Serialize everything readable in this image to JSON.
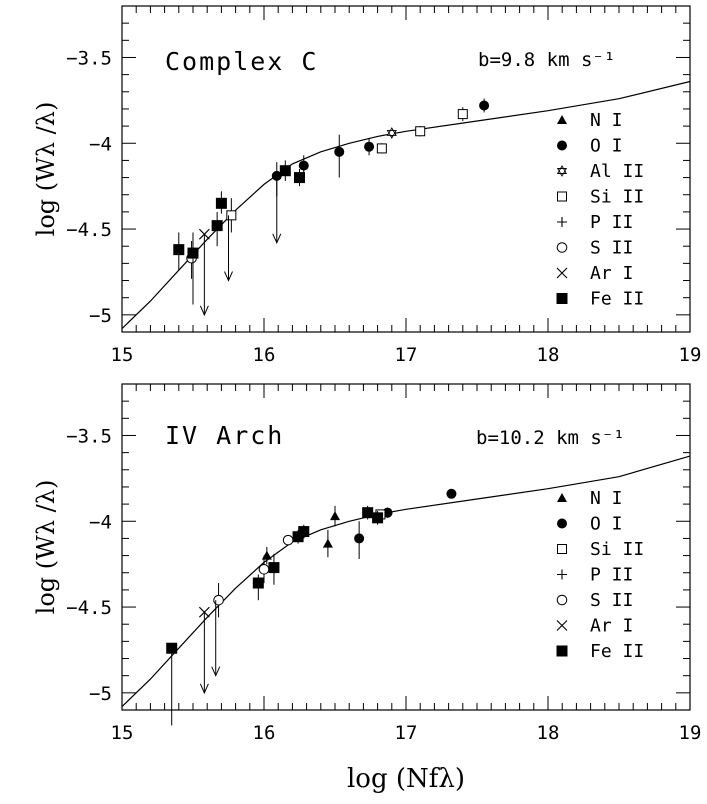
{
  "figure": {
    "xlabel": "log (Nfλ)",
    "ylabel": "log (Wλ /λ)"
  },
  "legend_items": {
    "N_I": "N I",
    "O_I": "O I",
    "Al_II": "Al II",
    "Si_II": "Si II",
    "P_II": "P II",
    "S_II": "S II",
    "Ar_I": "Ar I",
    "Fe_II": "Fe II"
  },
  "chart_data": [
    {
      "type": "scatter",
      "title": "Complex C",
      "annotation": "b=9.8 km s⁻¹",
      "xlim": [
        15,
        19
      ],
      "ylim": [
        -5.1,
        -3.2
      ],
      "xticks": [
        "15",
        "16",
        "17",
        "18",
        "19"
      ],
      "yticks": [
        "-3.5",
        "-4",
        "-4.5",
        "-5"
      ],
      "legend": [
        "N I",
        "O I",
        "Al II",
        "Si II",
        "P II",
        "S II",
        "Ar I",
        "Fe II"
      ],
      "legend_position": "right",
      "curve": [
        [
          15.0,
          -5.08
        ],
        [
          15.2,
          -4.92
        ],
        [
          15.4,
          -4.74
        ],
        [
          15.6,
          -4.56
        ],
        [
          15.8,
          -4.39
        ],
        [
          16.0,
          -4.24
        ],
        [
          16.2,
          -4.12
        ],
        [
          16.4,
          -4.05
        ],
        [
          16.6,
          -4.0
        ],
        [
          16.8,
          -3.96
        ],
        [
          17.0,
          -3.93
        ],
        [
          17.5,
          -3.87
        ],
        [
          18.0,
          -3.81
        ],
        [
          18.5,
          -3.74
        ],
        [
          19.0,
          -3.64
        ]
      ],
      "series": [
        {
          "name": "O I",
          "marker": "filled-circle",
          "points": [
            {
              "x": 16.09,
              "y": -4.19,
              "err": [
                0.12,
                0.08
              ]
            },
            {
              "x": 16.28,
              "y": -4.13,
              "err": [
                0.06,
                0.06
              ]
            },
            {
              "x": 16.53,
              "y": -4.05,
              "err": [
                0.15,
                0.1
              ]
            },
            {
              "x": 16.74,
              "y": -4.02,
              "err": [
                0.05,
                0.05
              ]
            },
            {
              "x": 17.55,
              "y": -3.78,
              "err": [
                0.04,
                0.04
              ]
            }
          ]
        },
        {
          "name": "O I upper limit",
          "marker": "none",
          "points": [
            {
              "x": 16.09,
              "y": -4.19,
              "upper": -4.58
            }
          ]
        },
        {
          "name": "Al II",
          "marker": "star",
          "points": [
            {
              "x": 16.9,
              "y": -3.94,
              "err": [
                0.02,
                0.02
              ]
            }
          ]
        },
        {
          "name": "Si II",
          "marker": "open-square",
          "points": [
            {
              "x": 15.77,
              "y": -4.42,
              "err": [
                0.1,
                0.1
              ]
            },
            {
              "x": 16.83,
              "y": -4.03,
              "err": [
                0.03,
                0.03
              ]
            },
            {
              "x": 17.1,
              "y": -3.93,
              "err": [
                0.03,
                0.03
              ]
            },
            {
              "x": 17.4,
              "y": -3.83,
              "err": [
                0.04,
                0.04
              ]
            }
          ]
        },
        {
          "name": "Si II upper limit",
          "marker": "none",
          "points": [
            {
              "x": 15.75,
              "y": -4.42,
              "upper": -4.8
            }
          ]
        },
        {
          "name": "S II",
          "marker": "open-circle",
          "points": [
            {
              "x": 15.49,
              "y": -4.67,
              "err": [
                0.12,
                0.1
              ]
            }
          ]
        },
        {
          "name": "Ar I",
          "marker": "cross",
          "points": [
            {
              "x": 15.58,
              "y": -4.53,
              "upper": -5.0
            }
          ]
        },
        {
          "name": "Fe II",
          "marker": "filled-square",
          "points": [
            {
              "x": 15.4,
              "y": -4.62,
              "err": [
                0.12,
                0.1
              ]
            },
            {
              "x": 15.5,
              "y": -4.64,
              "err": [
                0.3,
                0.12
              ]
            },
            {
              "x": 15.67,
              "y": -4.48,
              "err": [
                0.12,
                0.08
              ]
            },
            {
              "x": 15.7,
              "y": -4.35,
              "err": [
                0.06,
                0.07
              ]
            },
            {
              "x": 16.15,
              "y": -4.16,
              "err": [
                0.06,
                0.06
              ]
            },
            {
              "x": 16.25,
              "y": -4.2,
              "err": [
                0.05,
                0.05
              ]
            }
          ]
        }
      ]
    },
    {
      "type": "scatter",
      "title": "IV Arch",
      "annotation": "b=10.2 km s⁻¹",
      "xlim": [
        15,
        19
      ],
      "ylim": [
        -5.1,
        -3.2
      ],
      "xticks": [
        "15",
        "16",
        "17",
        "18",
        "19"
      ],
      "yticks": [
        "-3.5",
        "-4",
        "-4.5",
        "-5"
      ],
      "legend": [
        "N I",
        "O I",
        "Si II",
        "P II",
        "S II",
        "Ar I",
        "Fe II"
      ],
      "legend_position": "right",
      "curve": [
        [
          15.0,
          -5.08
        ],
        [
          15.2,
          -4.92
        ],
        [
          15.4,
          -4.74
        ],
        [
          15.6,
          -4.56
        ],
        [
          15.8,
          -4.39
        ],
        [
          16.0,
          -4.24
        ],
        [
          16.2,
          -4.12
        ],
        [
          16.4,
          -4.05
        ],
        [
          16.6,
          -4.0
        ],
        [
          16.8,
          -3.96
        ],
        [
          17.0,
          -3.93
        ],
        [
          17.5,
          -3.87
        ],
        [
          18.0,
          -3.81
        ],
        [
          18.5,
          -3.74
        ],
        [
          19.0,
          -3.62
        ]
      ],
      "series": [
        {
          "name": "N I",
          "marker": "filled-triangle",
          "points": [
            {
              "x": 16.02,
              "y": -4.2,
              "err": [
                0.05,
                0.05
              ]
            },
            {
              "x": 16.45,
              "y": -4.13,
              "err": [
                0.08,
                0.08
              ]
            },
            {
              "x": 16.5,
              "y": -3.97,
              "err": [
                0.06,
                0.06
              ]
            }
          ]
        },
        {
          "name": "O I",
          "marker": "filled-circle",
          "points": [
            {
              "x": 16.67,
              "y": -4.1,
              "err": [
                0.12,
                0.1
              ]
            },
            {
              "x": 16.87,
              "y": -3.95,
              "err": [
                0.03,
                0.03
              ]
            },
            {
              "x": 17.32,
              "y": -3.84,
              "err": [
                0.02,
                0.02
              ]
            }
          ]
        },
        {
          "name": "Si II",
          "marker": "open-square",
          "points": [
            {
              "x": 16.82,
              "y": -3.96,
              "err": [
                0.02,
                0.02
              ]
            }
          ]
        },
        {
          "name": "S II",
          "marker": "open-circle",
          "points": [
            {
              "x": 15.68,
              "y": -4.46,
              "err": [
                0.1,
                0.1
              ]
            },
            {
              "x": 16.0,
              "y": -4.28,
              "err": [
                0.08,
                0.08
              ]
            },
            {
              "x": 16.17,
              "y": -4.11,
              "err": [
                0.03,
                0.03
              ]
            }
          ]
        },
        {
          "name": "S II upper limit",
          "marker": "none",
          "points": [
            {
              "x": 15.66,
              "y": -4.46,
              "upper": -4.9
            }
          ]
        },
        {
          "name": "Ar I",
          "marker": "cross",
          "points": [
            {
              "x": 15.58,
              "y": -4.53,
              "upper": -5.0
            }
          ]
        },
        {
          "name": "Fe II",
          "marker": "filled-square",
          "points": [
            {
              "x": 15.35,
              "y": -4.74,
              "err": [
                0.45,
                0.0
              ]
            },
            {
              "x": 15.96,
              "y": -4.36,
              "err": [
                0.1,
                0.05
              ]
            },
            {
              "x": 16.07,
              "y": -4.27,
              "err": [
                0.1,
                0.08
              ]
            },
            {
              "x": 16.24,
              "y": -4.09,
              "err": [
                0.04,
                0.04
              ]
            },
            {
              "x": 16.28,
              "y": -4.06,
              "err": [
                0.04,
                0.04
              ]
            },
            {
              "x": 16.73,
              "y": -3.95,
              "err": [
                0.04,
                0.04
              ]
            },
            {
              "x": 16.8,
              "y": -3.98,
              "err": [
                0.04,
                0.04
              ]
            }
          ]
        }
      ]
    }
  ]
}
